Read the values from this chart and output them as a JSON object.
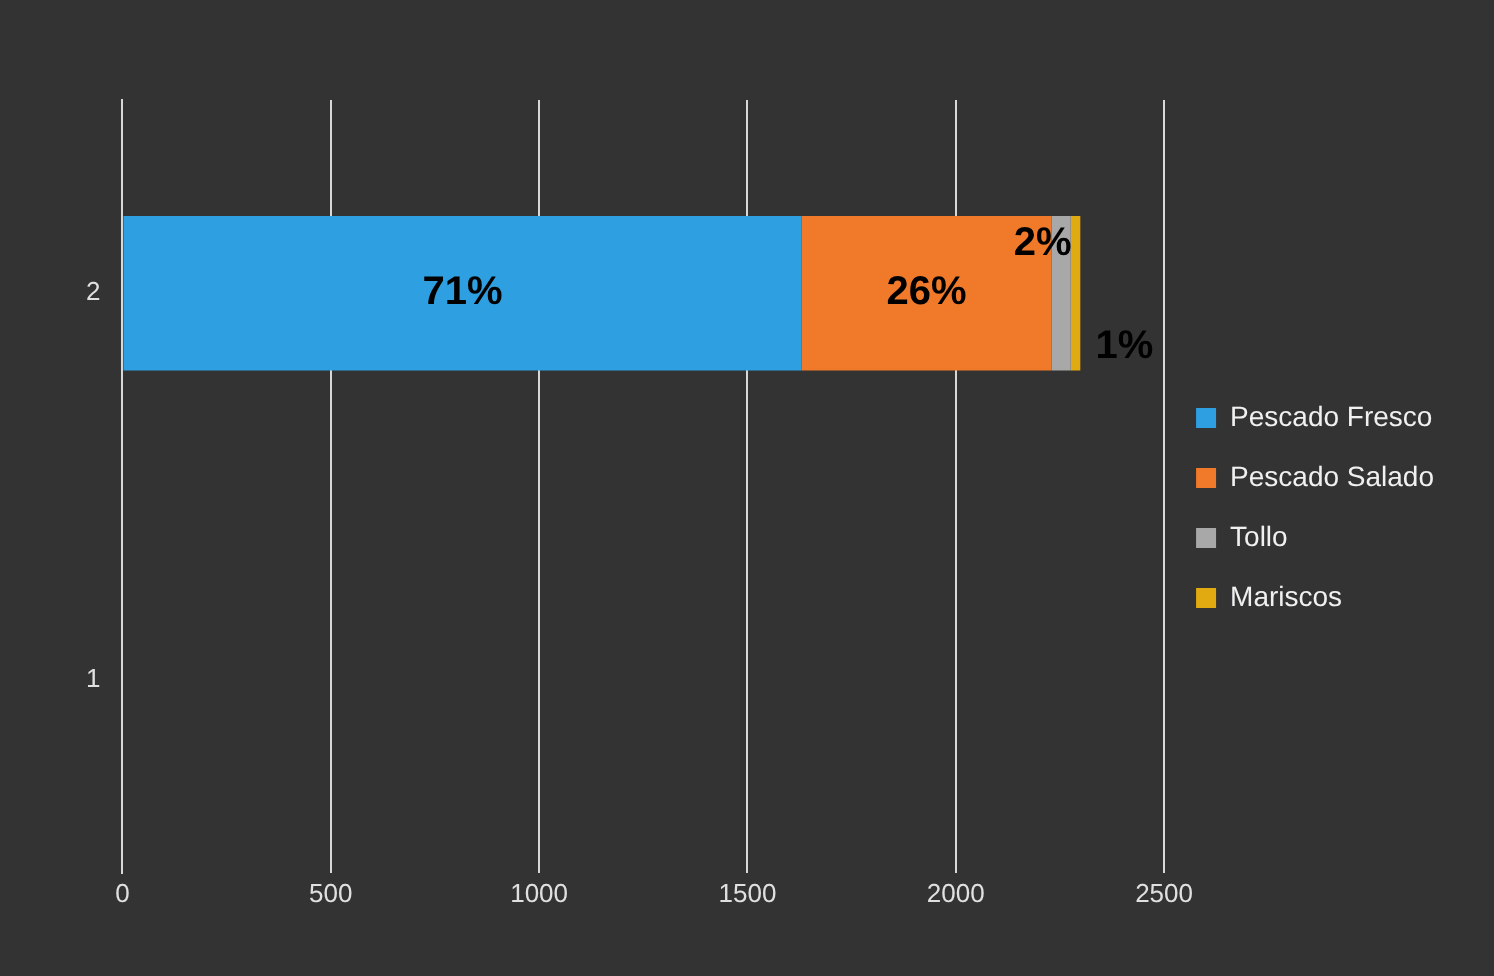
{
  "chart_data": {
    "type": "bar",
    "orientation": "horizontal",
    "stacked": true,
    "categories": [
      "2",
      "1"
    ],
    "series": [
      {
        "name": "Pescado Fresco",
        "color": "#2e9fe0",
        "values": [
          1630,
          null
        ]
      },
      {
        "name": "Pescado Salado",
        "color": "#f07a2a",
        "values": [
          600,
          null
        ]
      },
      {
        "name": "Tollo",
        "color": "#a8a8a8",
        "values": [
          46,
          null
        ]
      },
      {
        "name": "Mariscos",
        "color": "#e0aa10",
        "values": [
          23,
          null
        ]
      }
    ],
    "annotations": [
      "71%",
      "26%",
      "2%",
      "1%"
    ],
    "xlim": [
      0,
      2500
    ],
    "xticks": [
      0,
      500,
      1000,
      1500,
      2000,
      2500
    ],
    "grid": "x",
    "legend": "right"
  }
}
